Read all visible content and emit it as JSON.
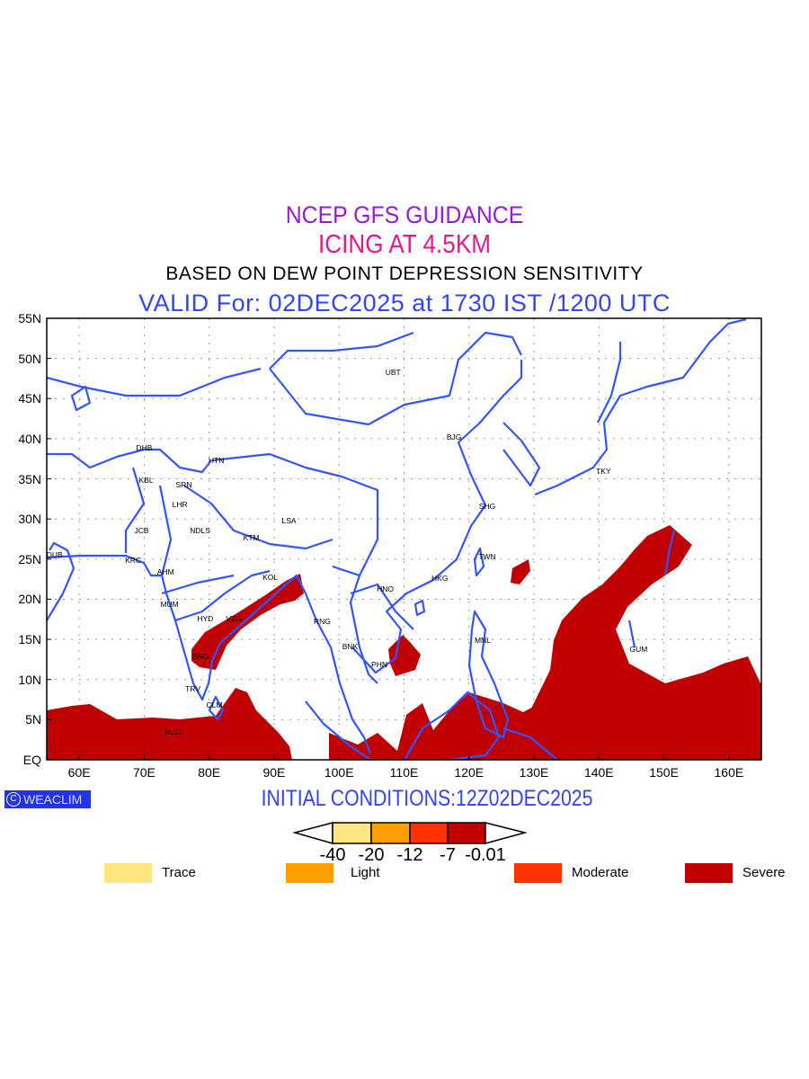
{
  "header": {
    "title": "NCEP GFS GUIDANCE",
    "subtitle": "ICING AT 4.5KM",
    "basis": "BASED ON DEW POINT DEPRESSION SENSITIVITY",
    "valid": "VALID For: 02DEC2025 at 1730 IST /1200 UTC"
  },
  "colors": {
    "title": "#9a19d6",
    "subtitle": "#e8168a",
    "valid": "#3344ff",
    "coast": "#3355ff",
    "trace": "#ffe680",
    "light": "#ffa000",
    "moderate": "#ff3300",
    "severe": "#c00000"
  },
  "map": {
    "lon_range": [
      55,
      165
    ],
    "lat_range": [
      0,
      55
    ],
    "y_ticks": [
      "55N",
      "50N",
      "45N",
      "40N",
      "35N",
      "30N",
      "25N",
      "20N",
      "15N",
      "10N",
      "5N",
      "EQ"
    ],
    "x_ticks": [
      "60E",
      "70E",
      "80E",
      "90E",
      "100E",
      "110E",
      "120E",
      "130E",
      "140E",
      "150E",
      "160E"
    ],
    "cities": [
      {
        "name": "UBT",
        "lon": 108.3,
        "lat": 48.3
      },
      {
        "name": "BJG",
        "lon": 117.7,
        "lat": 40.2
      },
      {
        "name": "DHB",
        "lon": 70.0,
        "lat": 38.9
      },
      {
        "name": "HTN",
        "lon": 81.1,
        "lat": 37.3
      },
      {
        "name": "KBL",
        "lon": 70.3,
        "lat": 34.8
      },
      {
        "name": "SRN",
        "lon": 76.1,
        "lat": 34.3
      },
      {
        "name": "TKY",
        "lon": 140.7,
        "lat": 36.0
      },
      {
        "name": "LHR",
        "lon": 75.5,
        "lat": 31.8
      },
      {
        "name": "SHG",
        "lon": 122.8,
        "lat": 31.6
      },
      {
        "name": "LSA",
        "lon": 92.3,
        "lat": 29.8
      },
      {
        "name": "JCB",
        "lon": 69.6,
        "lat": 28.6
      },
      {
        "name": "NDLS",
        "lon": 78.6,
        "lat": 28.6
      },
      {
        "name": "KTM",
        "lon": 86.5,
        "lat": 27.7
      },
      {
        "name": "DUB",
        "lon": 56.2,
        "lat": 25.5
      },
      {
        "name": "TWN",
        "lon": 122.8,
        "lat": 25.3
      },
      {
        "name": "KRC",
        "lon": 68.3,
        "lat": 24.9
      },
      {
        "name": "AHM",
        "lon": 73.3,
        "lat": 23.4
      },
      {
        "name": "HKG",
        "lon": 115.5,
        "lat": 22.6
      },
      {
        "name": "HNO",
        "lon": 107.1,
        "lat": 21.3
      },
      {
        "name": "KOL",
        "lon": 89.4,
        "lat": 22.7
      },
      {
        "name": "MUM",
        "lon": 73.9,
        "lat": 19.4
      },
      {
        "name": "HYD",
        "lon": 79.4,
        "lat": 17.6
      },
      {
        "name": "VZG",
        "lon": 83.8,
        "lat": 17.6
      },
      {
        "name": "RNG",
        "lon": 97.4,
        "lat": 17.2
      },
      {
        "name": "BNK",
        "lon": 101.7,
        "lat": 14.1
      },
      {
        "name": "MNL",
        "lon": 122.1,
        "lat": 14.9
      },
      {
        "name": "GUM",
        "lon": 146.1,
        "lat": 13.8
      },
      {
        "name": "BNG",
        "lon": 78.7,
        "lat": 12.9
      },
      {
        "name": "PHN",
        "lon": 106.2,
        "lat": 11.9
      },
      {
        "name": "TRV",
        "lon": 77.5,
        "lat": 8.8
      },
      {
        "name": "CLM",
        "lon": 80.8,
        "lat": 6.8
      },
      {
        "name": "MLD",
        "lon": 74.4,
        "lat": 3.5
      }
    ]
  },
  "footer": {
    "logo": "WEACLIM",
    "logo_symbol": "C",
    "initial": "INITIAL CONDITIONS:12Z02DEC2025",
    "colorbar_labels": [
      "-40",
      "-20",
      "-12",
      "-7",
      "-0.01"
    ],
    "legend": [
      {
        "label": "Trace",
        "color": "#ffe680"
      },
      {
        "label": "Light",
        "color": "#ffa000"
      },
      {
        "label": "Moderate",
        "color": "#ff3300"
      },
      {
        "label": "Severe",
        "color": "#c00000"
      }
    ]
  }
}
